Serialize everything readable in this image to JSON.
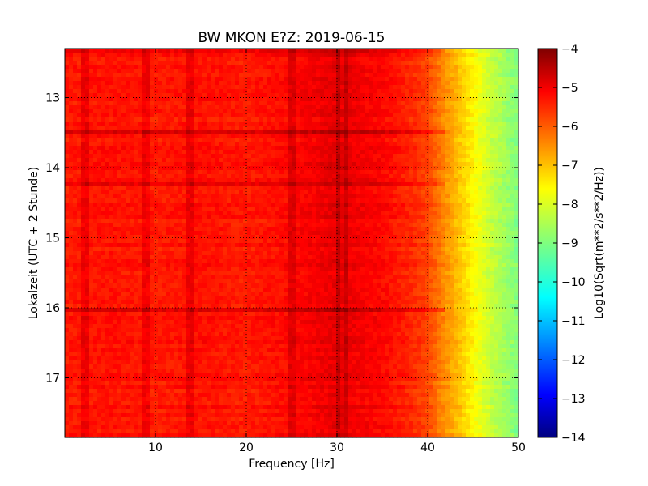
{
  "chart_data": {
    "type": "heatmap",
    "title": "BW MKON E?Z: 2019-06-15",
    "xlabel": "Frequency [Hz]",
    "ylabel": "Lokalzeit (UTC + 2 Stunde)",
    "xlim": [
      0,
      50
    ],
    "ylim": [
      17.85,
      12.3
    ],
    "x_ticks": [
      10,
      20,
      30,
      40,
      50
    ],
    "y_ticks": [
      13,
      14,
      15,
      16,
      17
    ],
    "grid": true,
    "colormap": "jet",
    "colorbar": {
      "label": "Log10(Sqrt(m**2/s**2/Hz))",
      "range": [
        -14,
        -4
      ],
      "ticks": [
        -4,
        -5,
        -6,
        -7,
        -8,
        -9,
        -10,
        -11,
        -12,
        -13,
        -14
      ]
    },
    "spectral_profile": {
      "frequency_hz": [
        0,
        5,
        10,
        15,
        20,
        25,
        30,
        35,
        38,
        40,
        41,
        43,
        45,
        47,
        50
      ],
      "log10_amplitude": [
        -5.5,
        -5.4,
        -5.5,
        -5.4,
        -5.5,
        -5.3,
        -5.0,
        -5.3,
        -5.6,
        -5.9,
        -6.3,
        -7.0,
        -7.7,
        -8.3,
        -9.0
      ]
    },
    "narrow_lines_hz": [
      2.3,
      9.0,
      13.8,
      25.0,
      30.0,
      31.0
    ],
    "strong_time_bands_h": [
      12.33,
      13.5,
      14.25,
      16.03
    ]
  },
  "colors": {
    "frame": "#000000",
    "grid": "#000000",
    "background": "#ffffff"
  }
}
